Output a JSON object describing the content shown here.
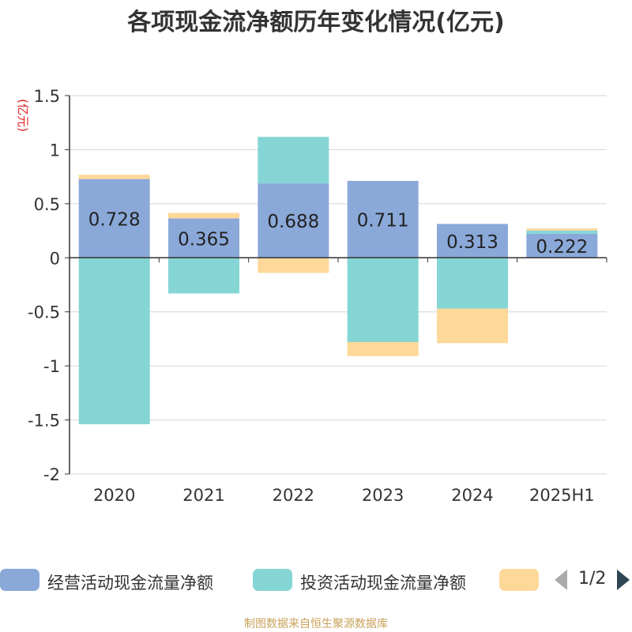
{
  "chart_data": {
    "type": "bar",
    "stacked": true,
    "title": "各项现金流净额历年变化情况(亿元)",
    "y_unit_label": "(亿元)",
    "categories": [
      "2020",
      "2021",
      "2022",
      "2023",
      "2024",
      "2025H1"
    ],
    "ylim": [
      -2,
      1.5
    ],
    "yticks": [
      1.5,
      1,
      0.5,
      0,
      -0.5,
      -1,
      -1.5,
      -2
    ],
    "grid": true,
    "legend_position": "bottom",
    "series": [
      {
        "name": "经营活动现金流量净额",
        "color": "#8aa9d9",
        "values": [
          0.728,
          0.365,
          0.688,
          0.711,
          0.313,
          0.222
        ],
        "show_labels": true
      },
      {
        "name": "投资活动现金流量净额",
        "color": "#85d5d5",
        "values": [
          -1.54,
          -0.33,
          0.43,
          -0.78,
          -0.47,
          0.03
        ],
        "show_labels": false
      },
      {
        "name": "",
        "color": "#fdd899",
        "values": [
          0.04,
          0.05,
          -0.14,
          -0.13,
          -0.32,
          0.02
        ],
        "show_labels": false
      }
    ],
    "data_labels": [
      "0.728",
      "0.365",
      "0.688",
      "0.711",
      "0.313",
      "0.222"
    ]
  },
  "legend": {
    "pager_text": "1/2"
  },
  "source": "制图数据来自恒生聚源数据库"
}
